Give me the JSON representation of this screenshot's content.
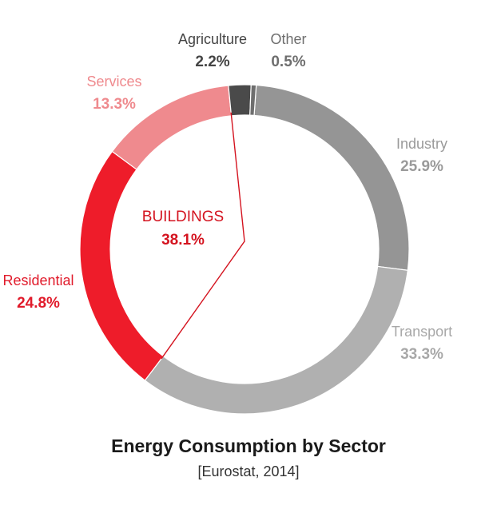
{
  "chart_data": {
    "type": "pie",
    "title": "Energy Consumption by Sector",
    "subtitle": "[Eurostat, 2014]",
    "series": [
      {
        "name": "Industry",
        "value": 25.9,
        "value_label": "25.9%",
        "color": "#959595",
        "label_color": "#9a9a9a"
      },
      {
        "name": "Transport",
        "value": 33.3,
        "value_label": "33.3%",
        "color": "#b0b0b0",
        "label_color": "#a8a8a8"
      },
      {
        "name": "Residential",
        "value": 24.8,
        "value_label": "24.8%",
        "color": "#ee1c2a",
        "label_color": "#e11b2b"
      },
      {
        "name": "Services",
        "value": 13.3,
        "value_label": "13.3%",
        "color": "#ef8a8e",
        "label_color": "#ef8a8e"
      },
      {
        "name": "Agriculture",
        "value": 2.2,
        "value_label": "2.2%",
        "color": "#4a4a4a",
        "label_color": "#444444"
      },
      {
        "name": "Other",
        "value": 0.5,
        "value_label": "0.5%",
        "color": "#6e6e6e",
        "label_color": "#6e6e6e"
      }
    ],
    "group_annotation": {
      "label": "BUILDINGS",
      "value_label": "38.1%",
      "members": [
        "Residential",
        "Services"
      ],
      "color": "#d4131f"
    },
    "donut": true,
    "legend": "none"
  }
}
